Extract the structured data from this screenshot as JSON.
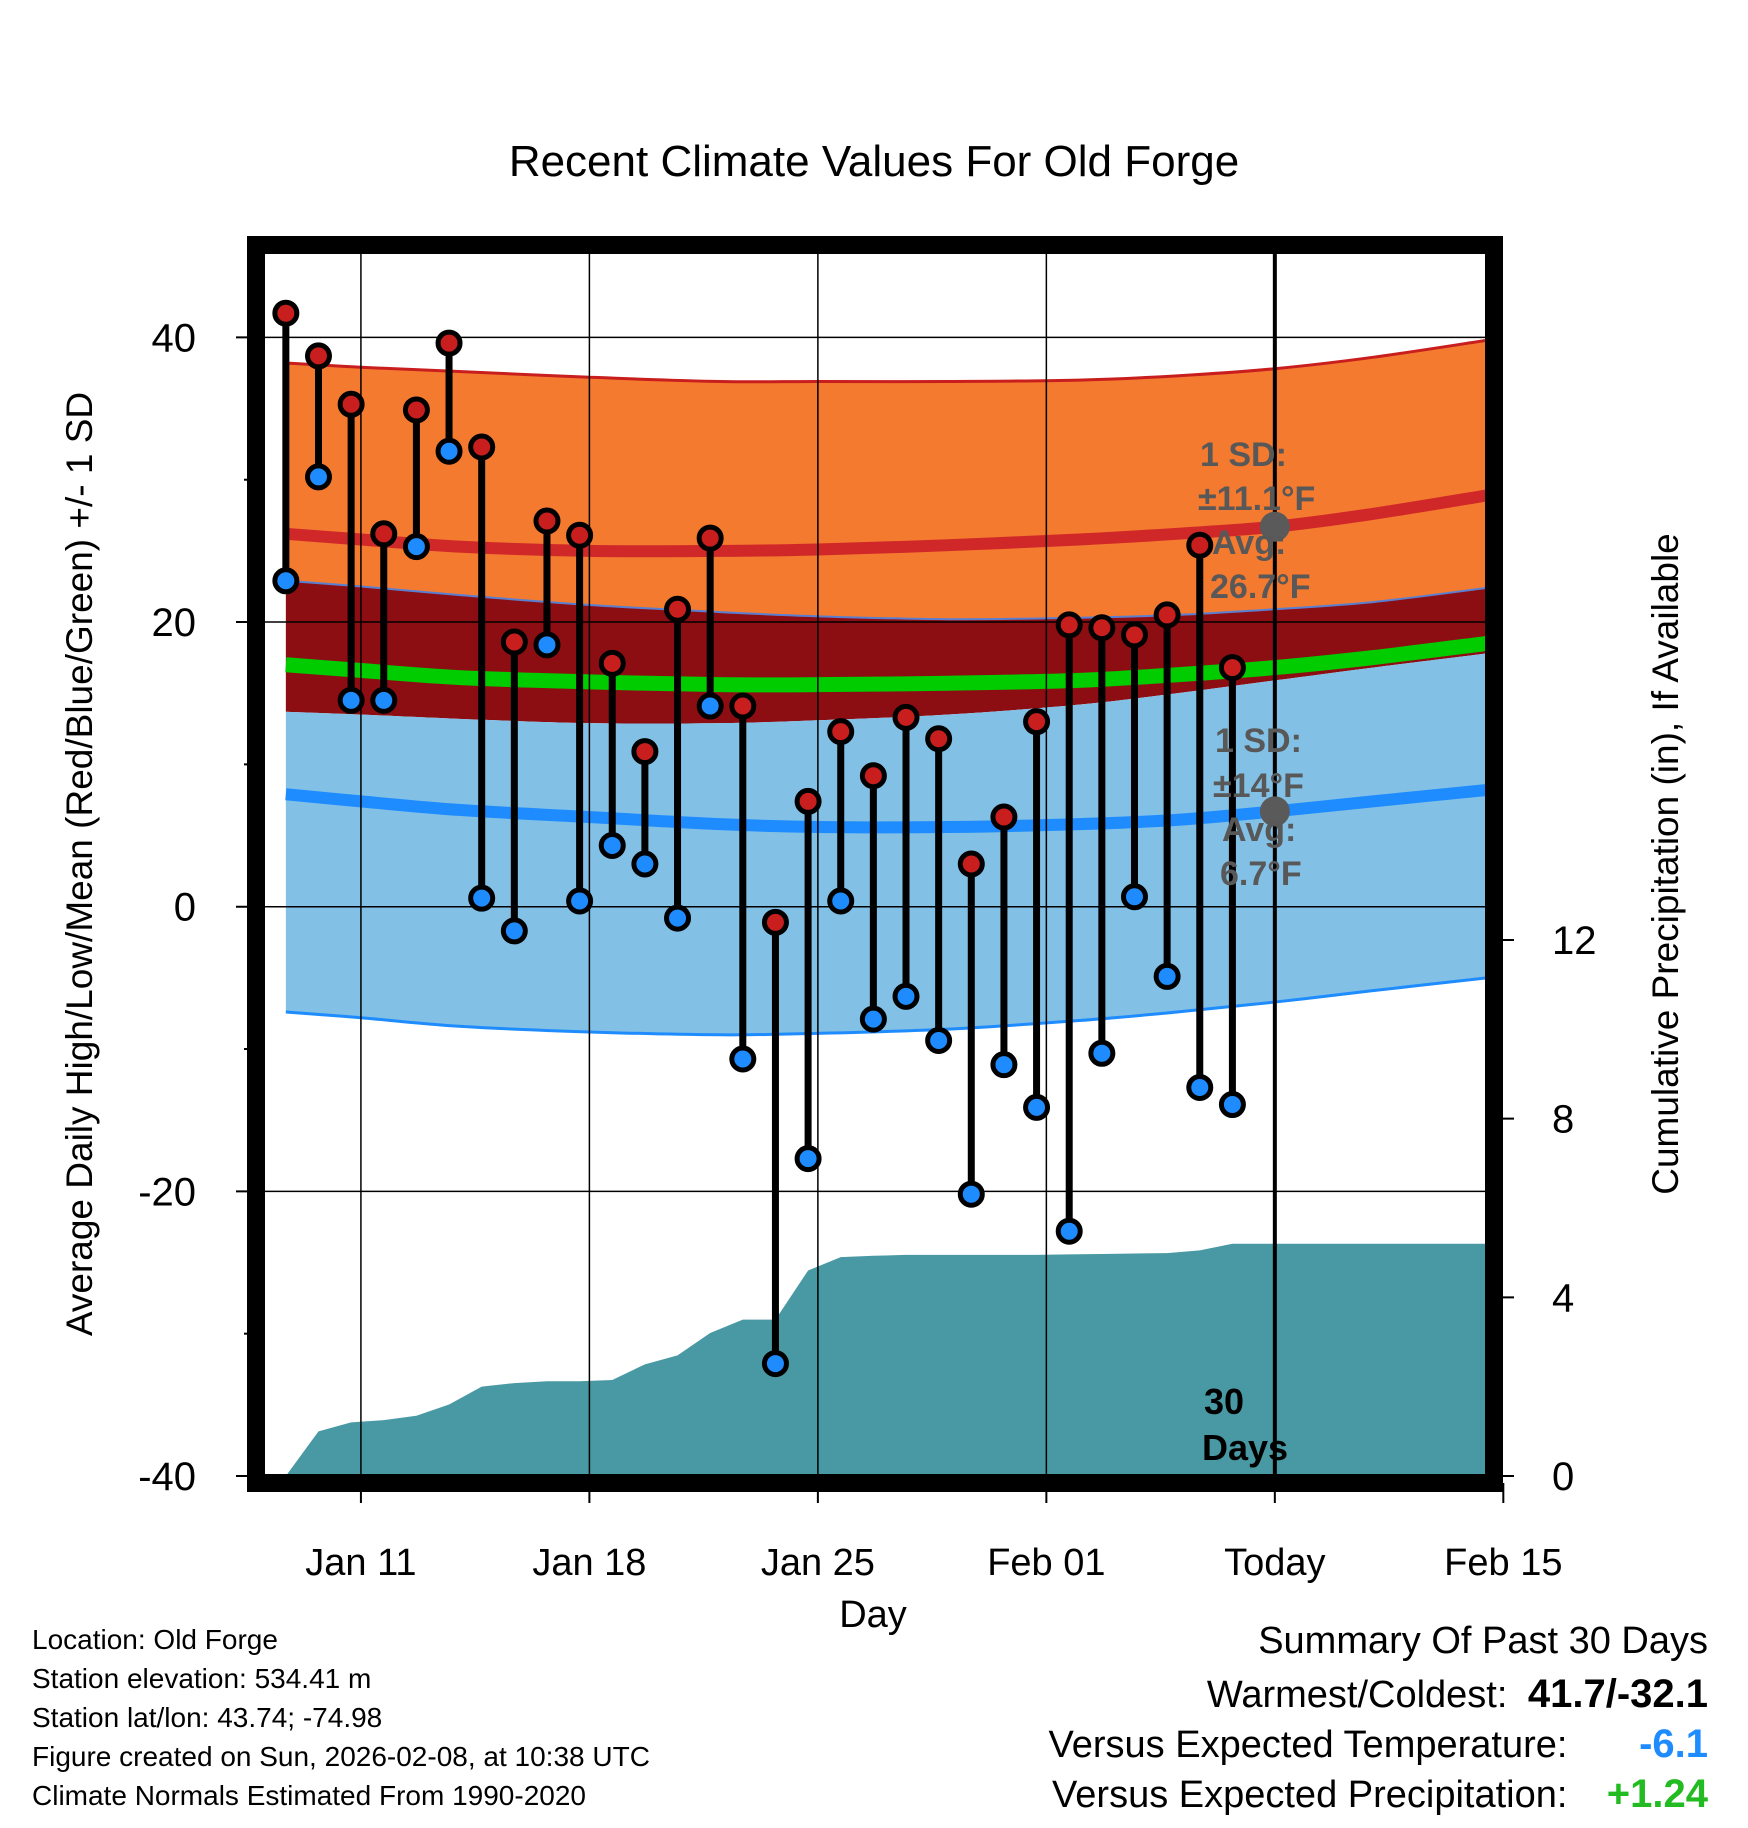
{
  "chart_data": {
    "type": "line",
    "title": "Recent Climate Values For Old Forge",
    "xlabel": "Day",
    "ylabel": "Average Daily High/Low/Mean (Red/Blue/Green) +/- 1 SD",
    "ylabel_right": "Cumulative Precipitation (in), If Available",
    "ylim": [
      -40,
      46
    ],
    "y_ticks": [
      "40",
      "20",
      "0",
      "-20",
      "-40"
    ],
    "y_tick_values": [
      40,
      20,
      0,
      -20,
      -40
    ],
    "y2lim": [
      0,
      27.4
    ],
    "y2_ticks": [
      "12",
      "8",
      "4",
      "0"
    ],
    "y2_tick_values": [
      12,
      8,
      4,
      0
    ],
    "x_range": [
      8,
      45.5
    ],
    "x_tick_labels": [
      "Jan 11",
      "Jan 18",
      "Jan 25",
      "Feb 01",
      "Today",
      "Feb 15"
    ],
    "x_tick_values": [
      11,
      18,
      25,
      32,
      39,
      46
    ],
    "today_x": 39,
    "days_label_top": "30",
    "days_label_bottom": "Days",
    "grid": true,
    "normals_x": [
      8.7,
      11,
      14,
      18,
      22,
      25,
      29,
      33,
      36,
      39,
      42,
      45.5
    ],
    "normal_high": [
      26.2,
      25.8,
      25.3,
      25.0,
      25.0,
      25.1,
      25.4,
      25.8,
      26.2,
      26.7,
      27.6,
      28.9
    ],
    "normal_high_sd_top": [
      38.2,
      37.9,
      37.6,
      37.2,
      36.9,
      36.9,
      36.9,
      37.0,
      37.3,
      37.8,
      38.6,
      39.8
    ],
    "normal_high_sd_bottom": [
      22.9,
      22.5,
      21.9,
      21.2,
      20.7,
      20.4,
      20.2,
      20.3,
      20.5,
      20.9,
      21.4,
      22.4
    ],
    "normal_mean": [
      17.0,
      16.6,
      16.1,
      15.8,
      15.6,
      15.6,
      15.7,
      15.9,
      16.3,
      16.8,
      17.5,
      18.5
    ],
    "normal_low": [
      7.9,
      7.4,
      6.8,
      6.3,
      5.8,
      5.6,
      5.6,
      5.8,
      6.1,
      6.7,
      7.4,
      8.2
    ],
    "normal_low_sd_top": [
      13.7,
      13.5,
      13.2,
      12.9,
      12.9,
      13.1,
      13.5,
      14.2,
      15.0,
      15.9,
      16.8,
      17.8
    ],
    "normal_low_sd_bottom": [
      -7.4,
      -7.8,
      -8.4,
      -8.8,
      -9.0,
      -8.9,
      -8.6,
      -8.0,
      -7.4,
      -6.7,
      -5.9,
      -5.0
    ],
    "days": [
      8.7,
      9.7,
      10.7,
      11.7,
      12.7,
      13.7,
      14.7,
      15.7,
      16.7,
      17.7,
      18.7,
      19.7,
      20.7,
      21.7,
      22.7,
      23.7,
      24.7,
      25.7,
      26.7,
      27.7,
      28.7,
      29.7,
      30.7,
      31.7,
      32.7,
      33.7,
      34.7,
      35.7,
      36.7,
      37.7
    ],
    "series": [
      {
        "name": "High",
        "color": "#c81e1e",
        "values": [
          41.7,
          38.7,
          35.3,
          26.2,
          34.9,
          39.6,
          32.3,
          18.6,
          27.1,
          26.1,
          17.1,
          10.9,
          20.9,
          25.9,
          14.1,
          -1.1,
          7.4,
          12.3,
          9.2,
          13.3,
          11.8,
          3.0,
          6.3,
          13.0,
          19.8,
          19.6,
          19.1,
          20.5,
          25.4,
          16.8
        ]
      },
      {
        "name": "Low",
        "color": "#1e8cff",
        "values": [
          22.9,
          30.2,
          14.5,
          14.5,
          25.3,
          32.0,
          0.6,
          -1.7,
          18.4,
          0.4,
          4.3,
          3.0,
          -0.8,
          14.1,
          -10.7,
          -32.1,
          -17.7,
          0.4,
          -7.9,
          -6.3,
          -9.4,
          -20.2,
          -11.1,
          -14.1,
          -22.8,
          -10.3,
          0.7,
          -4.9,
          -12.7,
          -13.9
        ]
      }
    ],
    "precip_days": [
      8.7,
      9.7,
      10.7,
      11.7,
      12.7,
      13.7,
      14.7,
      15.7,
      16.7,
      17.7,
      18.7,
      19.7,
      20.7,
      21.7,
      22.7,
      23.7,
      24.7,
      25.7,
      26.7,
      27.7,
      28.7,
      29.7,
      30.7,
      31.7,
      32.7,
      33.7,
      34.7,
      35.7,
      36.7,
      37.7,
      45.5
    ],
    "precip_cum": [
      0,
      1.0,
      1.2,
      1.25,
      1.35,
      1.6,
      2.0,
      2.08,
      2.12,
      2.12,
      2.15,
      2.5,
      2.7,
      3.2,
      3.5,
      3.5,
      4.6,
      4.9,
      4.93,
      4.95,
      4.95,
      4.95,
      4.95,
      4.95,
      4.96,
      4.97,
      4.98,
      4.99,
      5.05,
      5.2,
      5.2
    ],
    "annotations": {
      "high_sd_label": "1 SD:",
      "high_sd_value": "±11.1°F",
      "high_avg_label": "Avg:",
      "high_avg_value": "26.7°F",
      "high_avg": 26.7,
      "low_sd_label": "1 SD:",
      "low_sd_value": "±14°F",
      "low_avg_label": "Avg:",
      "low_avg_value": "6.7°F",
      "low_avg": 6.7
    },
    "colors": {
      "high_band": "#f47a30",
      "high_line": "#d02828",
      "high_sd_edge": "#c81e1e",
      "mid_band": "#8c0e12",
      "mean_line": "#00cc00",
      "low_band": "#82c0e6",
      "low_line": "#1e8cff",
      "low_sd_edge": "#1e8cff",
      "precip": "#4899a3",
      "annotation": "#585858"
    }
  },
  "info": {
    "location": "Location: Old Forge",
    "elevation": "Station elevation: 534.41 m",
    "latlon": "Station lat/lon: 43.74; -74.98",
    "created": "Figure created on Sun, 2026-02-08, at 10:38 UTC",
    "normals": "Climate Normals Estimated From 1990-2020"
  },
  "summary": {
    "title": "Summary Of Past 30 Days",
    "warm_cold_label": "Warmest/Coldest:",
    "warm_cold_value": "41.7/-32.1",
    "temp_label": "Versus Expected Temperature:",
    "temp_value": "-6.1",
    "temp_color": "#1e8cff",
    "precip_label": "Versus Expected Precipitation:",
    "precip_value": "+1.24",
    "precip_color": "#22bb22"
  }
}
